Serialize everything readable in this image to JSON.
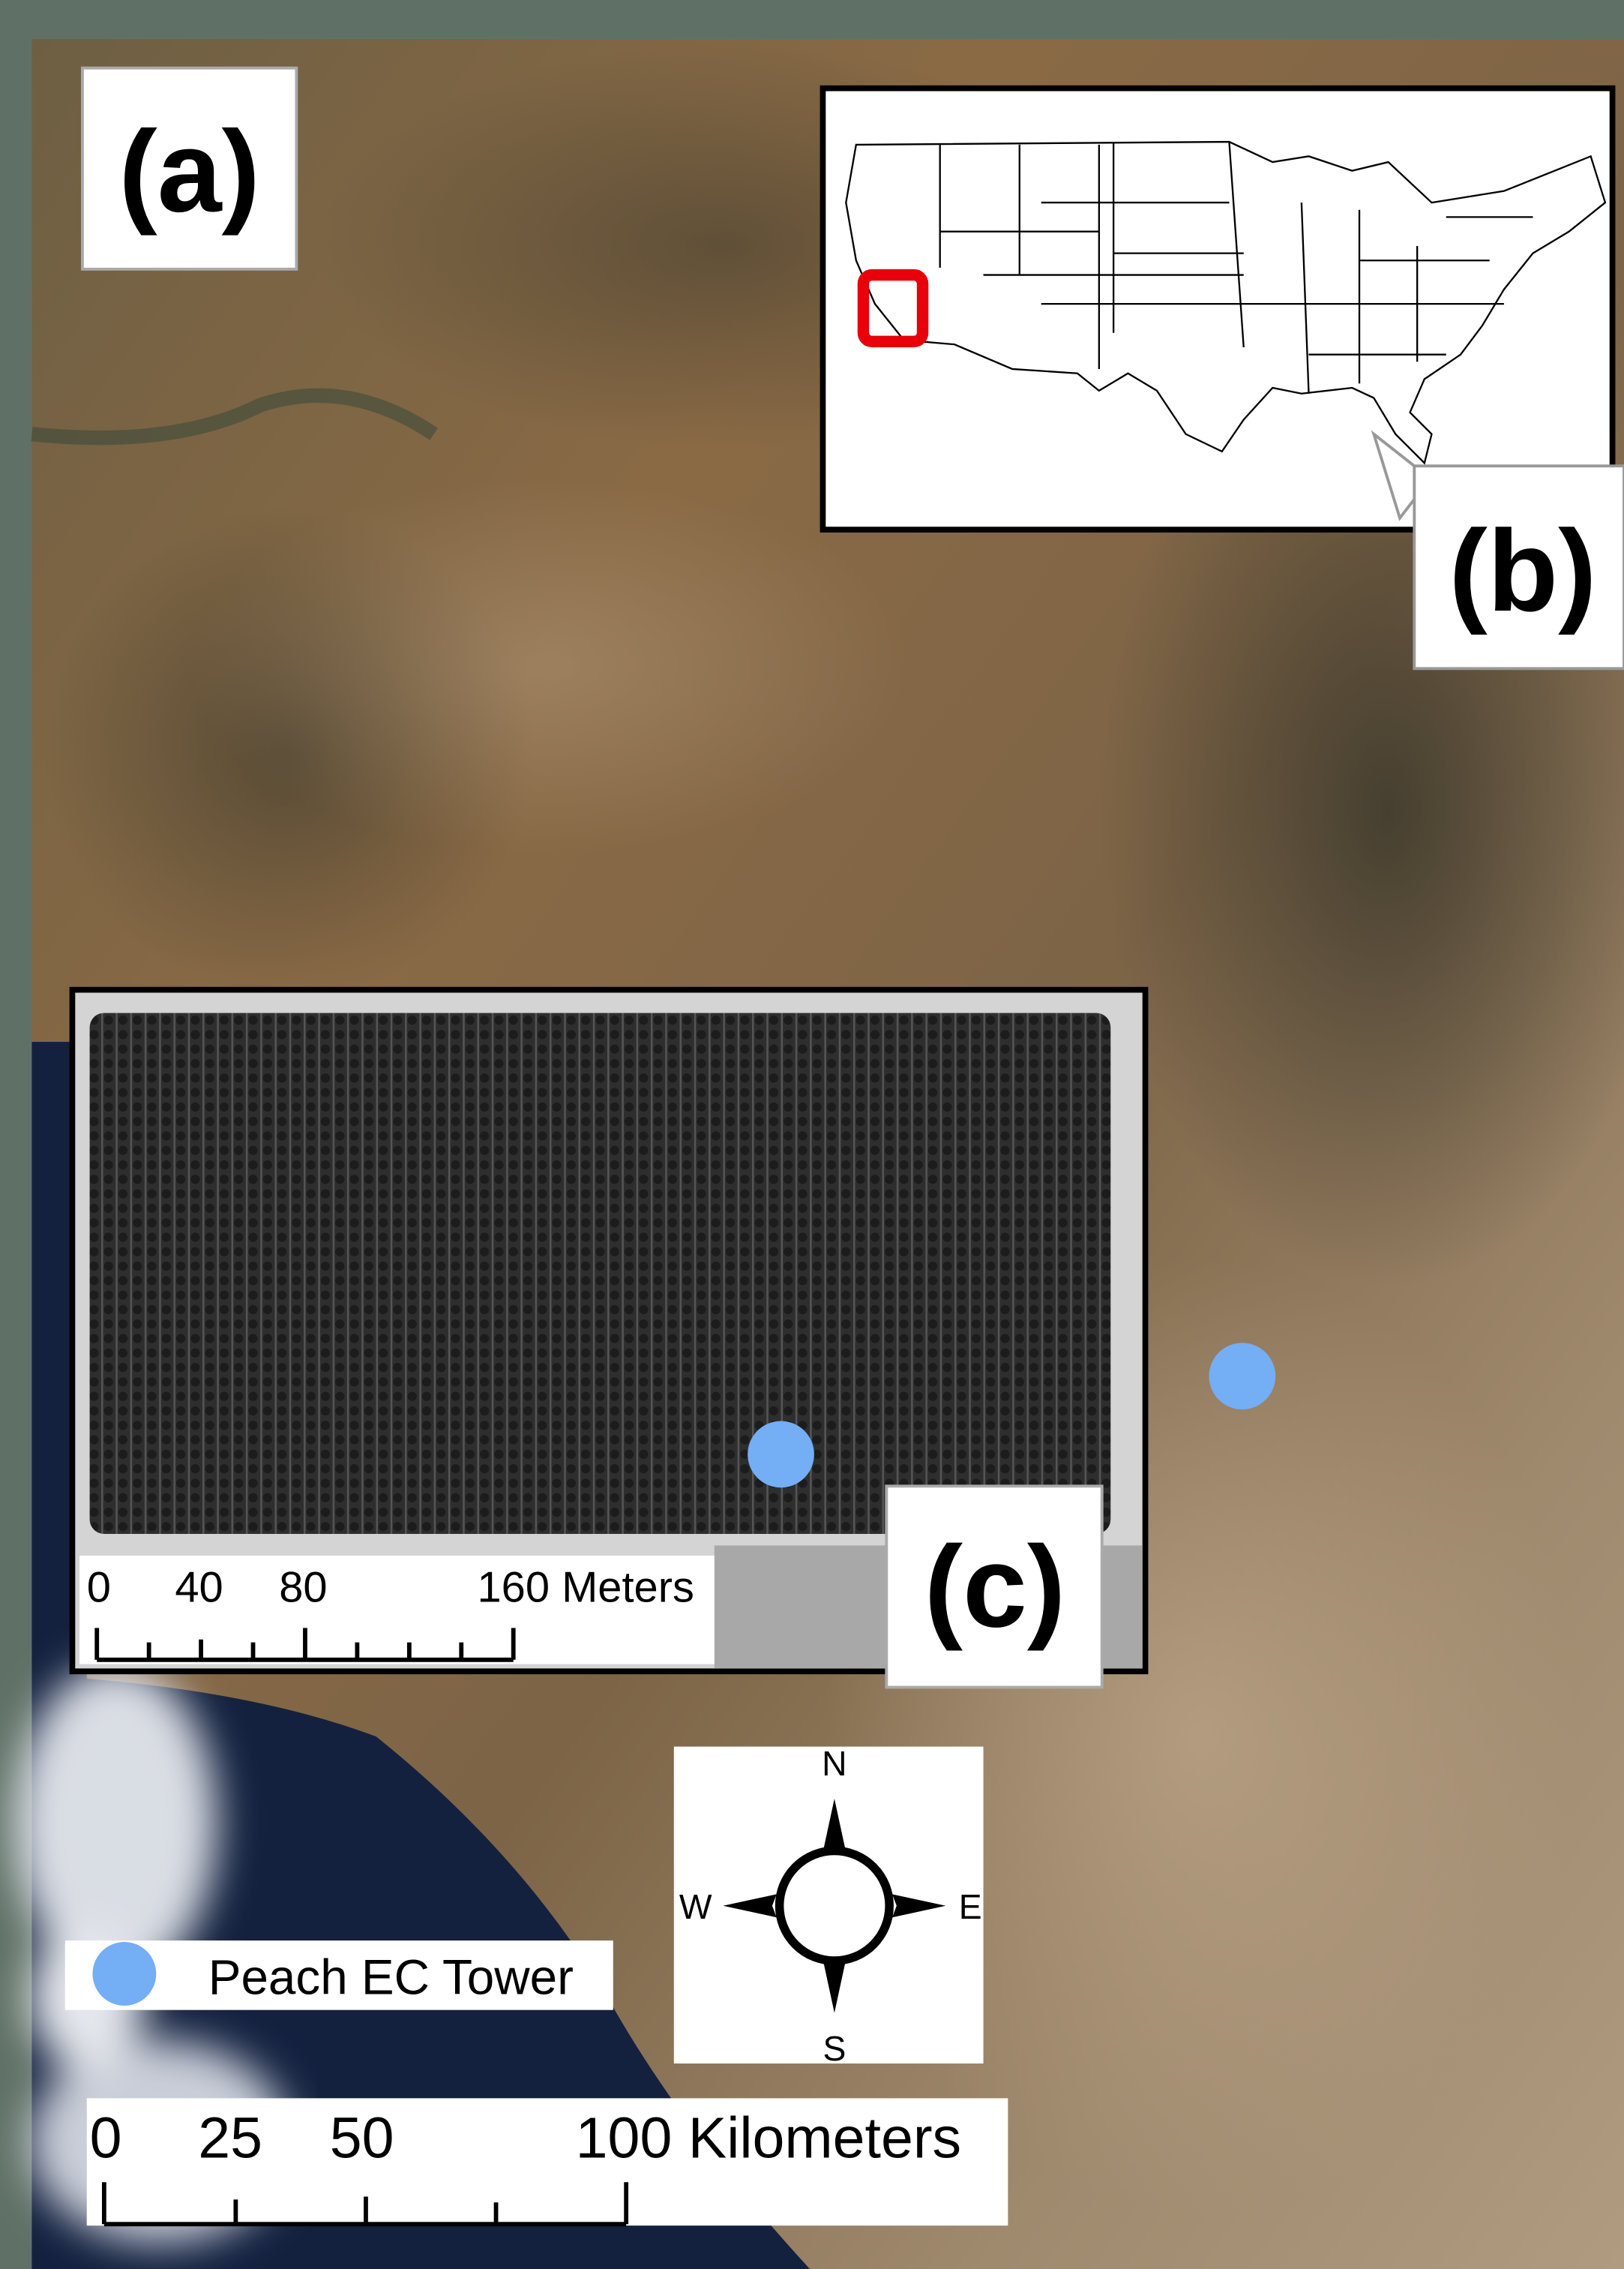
{
  "panels": {
    "a": "(a)",
    "b": "(b)",
    "c": "(c)"
  },
  "legend": {
    "label": "Peach EC Tower"
  },
  "scale_km": {
    "labels": [
      "0",
      "25",
      "50",
      "100 Kilometers"
    ]
  },
  "scale_m": {
    "labels": [
      "0",
      "40",
      "80",
      "160 Meters"
    ]
  },
  "compass": {
    "n": "N",
    "e": "E",
    "s": "S",
    "w": "W"
  }
}
